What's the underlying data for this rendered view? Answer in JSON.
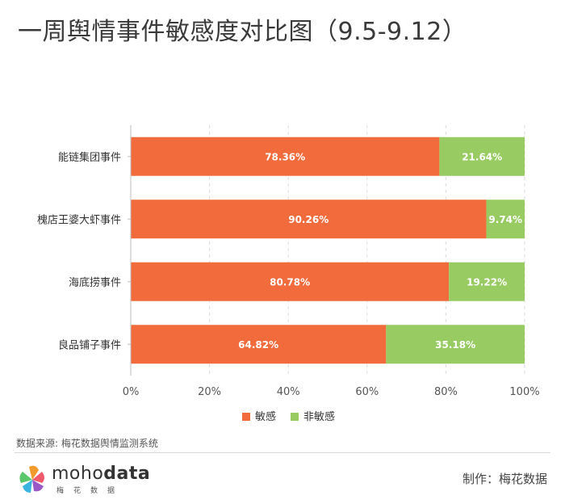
{
  "title": "一周舆情事件敏感度对比图（9.5-9.12）",
  "chart_data": {
    "type": "bar",
    "orientation": "horizontal",
    "stacked": true,
    "categories": [
      "能链集团事件",
      "槐店王婆大虾事件",
      "海底捞事件",
      "良品铺子事件"
    ],
    "series": [
      {
        "name": "敏感",
        "color": "#f26b3c",
        "values": [
          78.36,
          90.26,
          80.78,
          64.82
        ],
        "labels": [
          "78.36%",
          "90.26%",
          "80.78%",
          "64.82%"
        ]
      },
      {
        "name": "非敏感",
        "color": "#98cc63",
        "values": [
          21.64,
          9.74,
          19.22,
          35.18
        ],
        "labels": [
          "21.64%",
          "9.74%",
          "19.22%",
          "35.18%"
        ]
      }
    ],
    "xlim": [
      0,
      100
    ],
    "xticks": [
      "0%",
      "20%",
      "40%",
      "60%",
      "80%",
      "100%"
    ],
    "xtick_values": [
      0,
      20,
      40,
      60,
      80,
      100
    ],
    "grid": "vertical dashed",
    "legend": "bottom-center"
  },
  "footer": {
    "source": "数据来源: 梅花数据舆情监测系统",
    "credit": "制作：梅花数据",
    "logo_text_light": "moho",
    "logo_text_bold": "data",
    "logo_sub": "梅花数据"
  }
}
